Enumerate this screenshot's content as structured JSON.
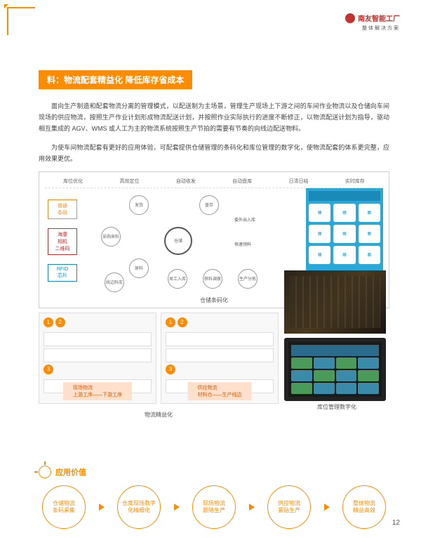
{
  "brand": {
    "name": "南友智能工厂",
    "subtitle": "整体解决方案"
  },
  "section": {
    "title": "料：物流配套精益化 降低库存省成本"
  },
  "paragraphs": {
    "p1": "面向生产制造和配套物流分离的管理模式，以配送制为主场景，管理生产现场上下游之间的车间作业物流以及仓储向车间现场的供应物流，按照生产作业计划形成物流配送计划，并按照作业实际执行的进度不断修正，以物流配送计划为指导，驱动相互集成的 AGV、WMS 或人工为主的物流系统按照生产节拍的需要有节奏的向线边配送物料。",
    "p2": "为使车间物流配套有更好的应用体验，可配套提供仓储管理的条码化和库位管理的数字化，使物流配套的体系更完整，应用效果更优。"
  },
  "diagram": {
    "headers": [
      "库位优化",
      "高效定位",
      "自动收发",
      "自动盘库",
      "日清日结",
      "实时库存"
    ],
    "left_tags": [
      {
        "t1": "普通",
        "t2": "条码",
        "color": "#f28c28"
      },
      {
        "t1": "海康",
        "t2": "相机",
        "t3": "二维码",
        "color": "#c4312e"
      },
      {
        "t1": "RFID",
        "t2": "芯片",
        "color": "#1a8bb8"
      }
    ],
    "center_node": "仓储",
    "nodes": {
      "n1": "发货",
      "n2": "盘存",
      "n3": "采购来料",
      "n4": "原料",
      "n5": "线边料库",
      "n6": "呆工入库",
      "n7": "移料调拨",
      "n8": "生产分拣",
      "n9": "委外出入库",
      "n10": "快速领料"
    },
    "caption": "仓储条码化",
    "app_icons": [
      "⬚",
      "⬚",
      "⬚",
      "⬚",
      "⬚",
      "⬚",
      "⬚",
      "⬚",
      "⬚"
    ]
  },
  "flow_panels": {
    "left": {
      "title": "现场物流",
      "sub": "上游工序——下游工序"
    },
    "right": {
      "title": "供应物流",
      "sub": "材料仓——生产线边"
    },
    "caption": "物流精益化"
  },
  "right_images": {
    "cap1": "",
    "cap2": "库位管理数字化"
  },
  "value": {
    "header": "应用价值",
    "items": [
      "仓储物流\n条码采集",
      "仓库现场数字\n化精细化",
      "现场物流\n跟随生产",
      "供应物流\n紧贴生产",
      "整体物流\n精益高效"
    ]
  },
  "page": "12"
}
